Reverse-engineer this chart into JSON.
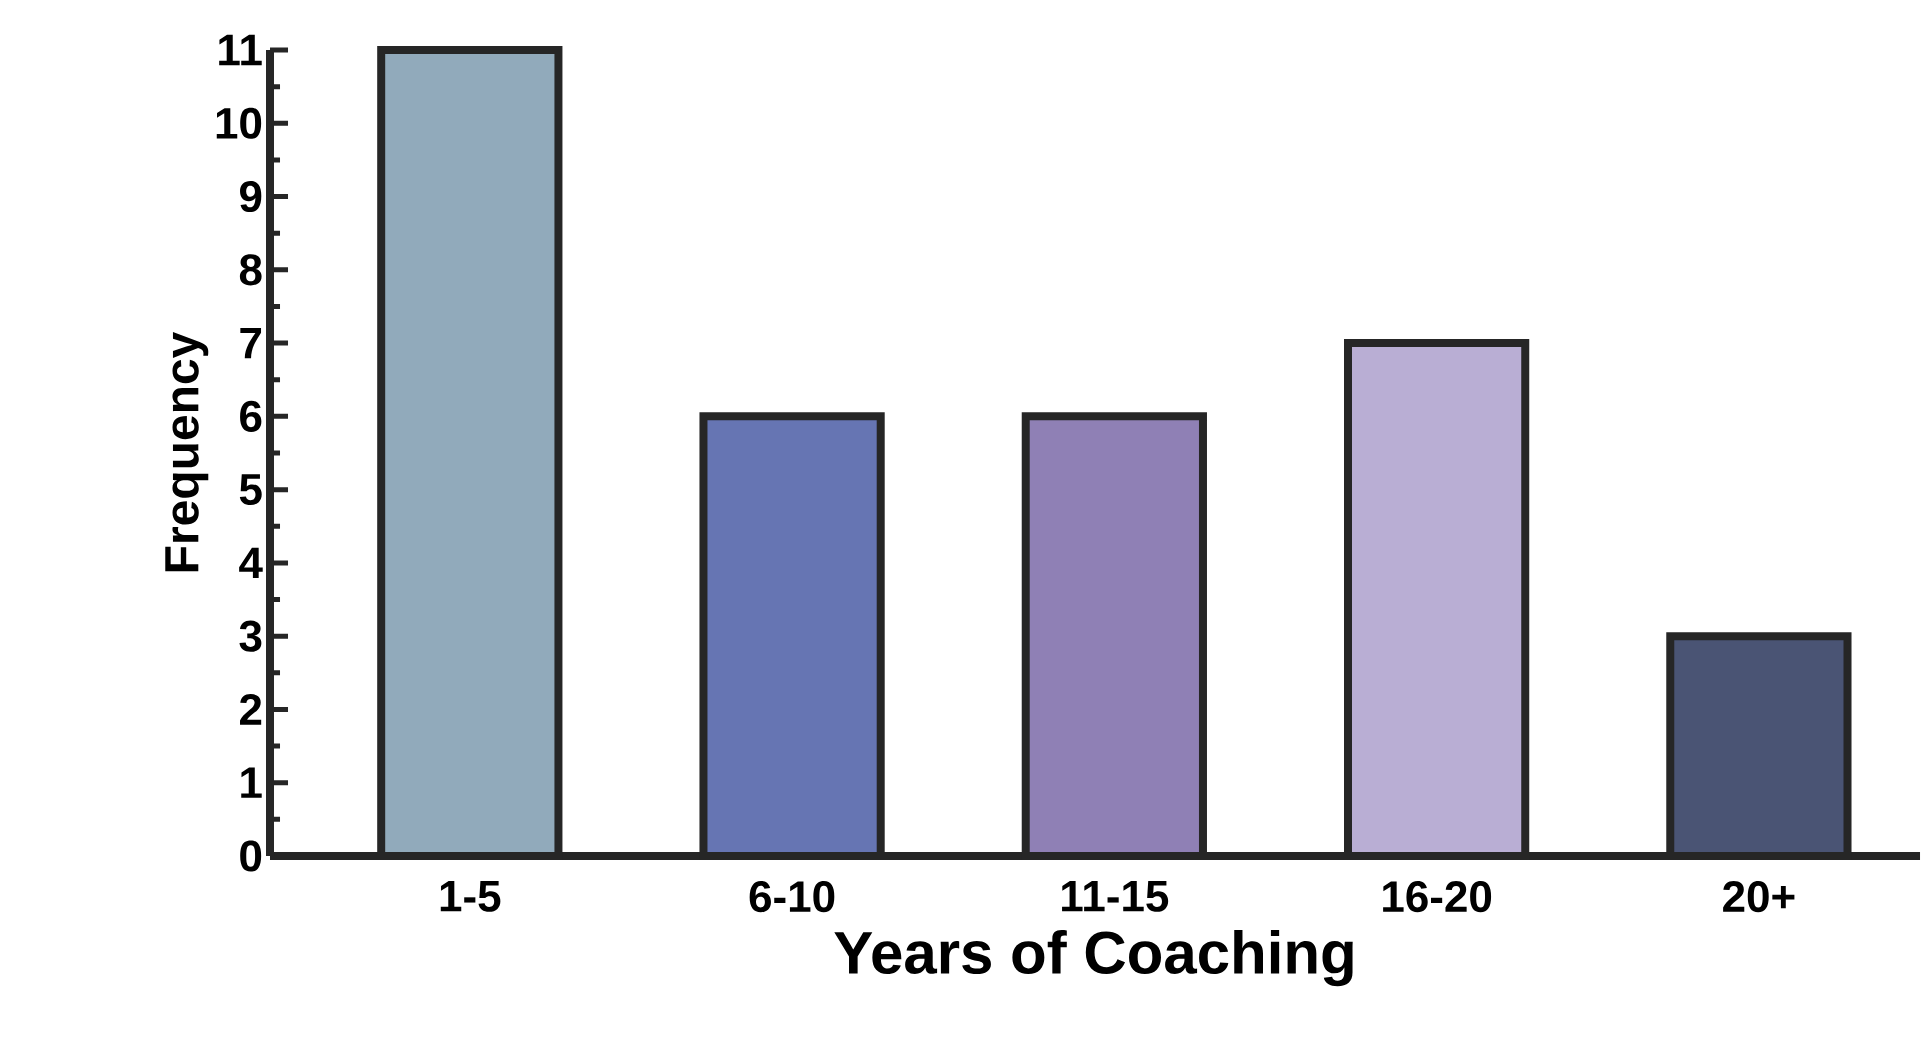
{
  "chart_data": {
    "type": "bar",
    "xlabel": "Years of Coaching",
    "ylabel": "Frequency",
    "categories": [
      "1-5",
      "6-10",
      "11-15",
      "16-20",
      "20+"
    ],
    "values": [
      11,
      6,
      6,
      7,
      3
    ],
    "colors": [
      "#91aabb",
      "#6675b3",
      "#8f80b5",
      "#b9aed4",
      "#4a5474"
    ],
    "ylim": [
      0,
      11
    ],
    "yticks": [
      0,
      1,
      2,
      3,
      4,
      5,
      6,
      7,
      8,
      9,
      10,
      11
    ],
    "grid": false
  }
}
